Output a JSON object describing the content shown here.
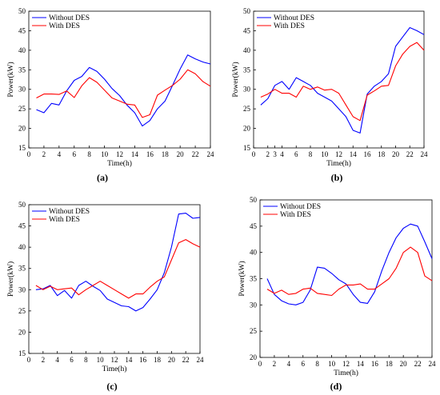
{
  "chart_data": [
    {
      "type": "line",
      "caption": "(a)",
      "xlabel": "Time(h)",
      "ylabel": "Power(kW)",
      "xlim": [
        0,
        24
      ],
      "ylim": [
        15,
        50
      ],
      "xticks": [
        0,
        2,
        4,
        6,
        8,
        10,
        12,
        14,
        16,
        18,
        20,
        22,
        24
      ],
      "yticks": [
        15,
        20,
        25,
        30,
        35,
        40,
        45,
        50
      ],
      "grid": false,
      "legend": "top-left",
      "x": [
        1,
        2,
        3,
        4,
        5,
        6,
        7,
        8,
        9,
        10,
        11,
        12,
        13,
        14,
        15,
        16,
        17,
        18,
        19,
        20,
        21,
        22,
        23,
        24
      ],
      "series": [
        {
          "name": "Without DES",
          "color": "#0000ff",
          "values": [
            24.8,
            24.0,
            26.4,
            26.0,
            29.6,
            32.3,
            33.3,
            35.6,
            34.6,
            32.6,
            30.2,
            28.4,
            25.9,
            24.0,
            20.6,
            22.0,
            25.0,
            27.0,
            31.0,
            35.2,
            38.8,
            37.8,
            37.0,
            36.5
          ]
        },
        {
          "name": "With DES",
          "color": "#ff0000",
          "values": [
            27.8,
            28.8,
            28.8,
            28.7,
            29.6,
            27.9,
            30.9,
            33.0,
            31.8,
            29.8,
            27.8,
            27.0,
            26.2,
            26.0,
            22.8,
            23.5,
            28.5,
            29.8,
            31.0,
            32.6,
            35.0,
            34.0,
            32.0,
            30.8
          ]
        }
      ]
    },
    {
      "type": "line",
      "caption": "(b)",
      "xlabel": "Time(h)",
      "ylabel": "Power(kW)",
      "xlim": [
        0,
        24
      ],
      "ylim": [
        15,
        50
      ],
      "xticks": [
        0,
        2,
        3,
        4,
        6,
        8,
        10,
        12,
        14,
        16,
        18,
        20,
        22,
        24
      ],
      "yticks": [
        15,
        20,
        25,
        30,
        35,
        40,
        45,
        50
      ],
      "grid": false,
      "legend": "top-left",
      "x": [
        1,
        2,
        3,
        4,
        5,
        6,
        7,
        8,
        9,
        10,
        11,
        12,
        13,
        14,
        15,
        16,
        17,
        18,
        19,
        20,
        21,
        22,
        23,
        24
      ],
      "series": [
        {
          "name": "Without DES",
          "color": "#0000ff",
          "values": [
            26.0,
            27.6,
            31.0,
            32.0,
            30.0,
            33.0,
            32.0,
            31.0,
            29.0,
            28.0,
            27.0,
            25.0,
            23.0,
            19.5,
            18.8,
            28.8,
            30.8,
            32.0,
            34.0,
            41.0,
            43.4,
            45.8,
            45.0,
            44.0
          ]
        },
        {
          "name": "With DES",
          "color": "#ff0000",
          "values": [
            28.0,
            28.8,
            30.0,
            29.0,
            29.0,
            28.0,
            30.8,
            30.0,
            30.6,
            29.8,
            30.0,
            29.0,
            26.0,
            23.0,
            22.0,
            28.5,
            29.6,
            30.8,
            31.0,
            36.0,
            39.0,
            41.0,
            42.0,
            40.0
          ]
        }
      ]
    },
    {
      "type": "line",
      "caption": "(c)",
      "xlabel": "Time(h)",
      "ylabel": "Power(kW)",
      "xlim": [
        0,
        24
      ],
      "ylim": [
        15,
        50
      ],
      "xticks": [
        0,
        2,
        4,
        6,
        8,
        10,
        12,
        14,
        16,
        18,
        20,
        22,
        24
      ],
      "yticks": [
        15,
        20,
        25,
        30,
        35,
        40,
        45,
        50
      ],
      "grid": false,
      "legend": "top-left",
      "x": [
        1,
        2,
        3,
        4,
        5,
        6,
        7,
        8,
        9,
        10,
        11,
        12,
        13,
        14,
        15,
        16,
        17,
        18,
        19,
        20,
        21,
        22,
        23,
        24
      ],
      "series": [
        {
          "name": "Without DES",
          "color": "#0000ff",
          "values": [
            30.0,
            30.2,
            31.0,
            28.6,
            29.8,
            28.0,
            31.0,
            32.0,
            30.8,
            29.8,
            27.8,
            27.0,
            26.2,
            26.0,
            25.0,
            25.8,
            27.8,
            30.0,
            34.0,
            40.0,
            47.8,
            48.0,
            46.8,
            47.0
          ]
        },
        {
          "name": "With DES",
          "color": "#ff0000",
          "values": [
            31.0,
            30.0,
            30.8,
            30.0,
            30.2,
            30.4,
            28.8,
            30.0,
            31.0,
            32.0,
            31.0,
            30.0,
            29.0,
            28.0,
            29.0,
            29.0,
            30.6,
            32.0,
            33.0,
            37.0,
            41.0,
            41.8,
            40.8,
            40.0
          ]
        }
      ]
    },
    {
      "type": "line",
      "caption": "(d)",
      "xlabel": "Time(h)",
      "ylabel": "Power(kW)",
      "xlim": [
        0,
        24
      ],
      "ylim": [
        20,
        50
      ],
      "xticks": [
        0,
        2,
        4,
        6,
        8,
        10,
        12,
        14,
        16,
        18,
        20,
        22,
        24
      ],
      "yticks": [
        20,
        25,
        30,
        35,
        40,
        45,
        50
      ],
      "grid": false,
      "legend": "top-left",
      "x": [
        1,
        2,
        3,
        4,
        5,
        6,
        7,
        8,
        9,
        10,
        11,
        12,
        13,
        14,
        15,
        16,
        17,
        18,
        19,
        20,
        21,
        22,
        23,
        24
      ],
      "series": [
        {
          "name": "Without DES",
          "color": "#0000ff",
          "values": [
            35.0,
            32.0,
            30.8,
            30.2,
            30.0,
            30.5,
            32.8,
            37.2,
            37.0,
            36.0,
            34.8,
            34.0,
            32.0,
            30.5,
            30.3,
            32.5,
            36.5,
            40.0,
            42.8,
            44.6,
            45.4,
            45.0,
            42.0,
            38.8
          ]
        },
        {
          "name": "With DES",
          "color": "#ff0000",
          "values": [
            33.0,
            32.2,
            32.8,
            32.0,
            32.2,
            33.0,
            33.2,
            32.2,
            32.0,
            31.8,
            33.0,
            33.8,
            33.8,
            34.0,
            33.0,
            33.0,
            34.0,
            35.0,
            37.0,
            40.0,
            41.0,
            40.0,
            35.5,
            34.6
          ]
        }
      ]
    }
  ]
}
